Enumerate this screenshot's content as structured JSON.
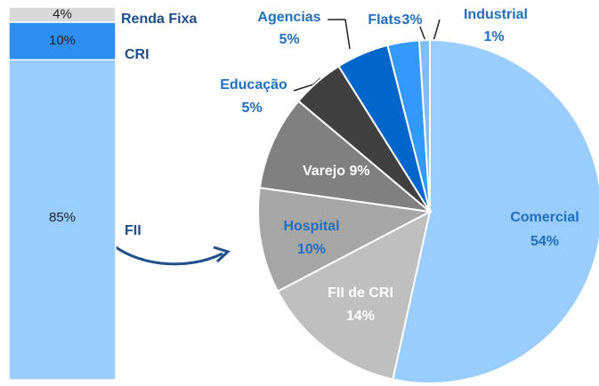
{
  "chart_data": [
    {
      "type": "stacked_bar",
      "series": [
        {
          "name": "FII",
          "values": [
            85
          ],
          "value_labels": [
            "85%"
          ],
          "color": "#99ccff"
        },
        {
          "name": "CRI",
          "values": [
            10
          ],
          "value_labels": [
            "10%"
          ],
          "color": "#2f8ff0"
        },
        {
          "name": "Renda Fixa",
          "values": [
            4
          ],
          "value_labels": [
            "4%"
          ],
          "color": "#d9d9d9"
        }
      ]
    },
    {
      "type": "pie",
      "categories": [
        "Comercial",
        "FII de CRI",
        "Hospital",
        "Varejo",
        "Educação",
        "Agencias",
        "Flats",
        "Industrial"
      ],
      "values": [
        54,
        14,
        10,
        9,
        5,
        5,
        3,
        1
      ],
      "value_labels": [
        "54%",
        "14%",
        "10%",
        "9%",
        "5%",
        "5%",
        "3%",
        "1%"
      ],
      "colors": [
        "#99ccff",
        "#bfbfbf",
        "#a6a6a6",
        "#808080",
        "#404040",
        "#0066cc",
        "#3399ff",
        "#7fbfff"
      ]
    }
  ]
}
